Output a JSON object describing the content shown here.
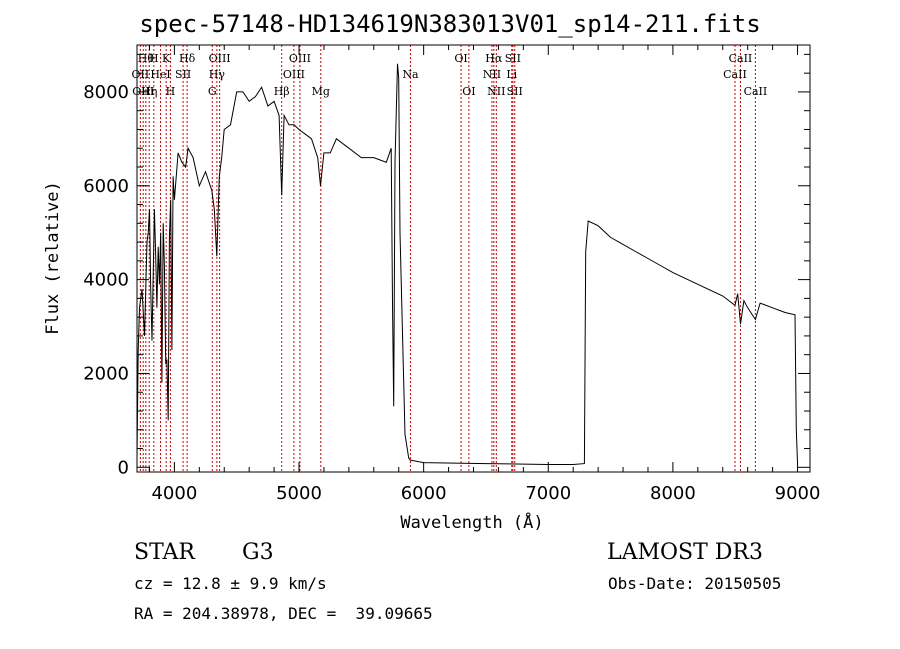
{
  "chart_data": {
    "type": "line",
    "title": "spec-57148-HD134619N383013V01_sp14-211.fits",
    "xlabel": "Wavelength (Å)",
    "ylabel": "Flux (relative)",
    "xlim": [
      3700,
      9100
    ],
    "ylim": [
      -100,
      9000
    ],
    "x_ticks": [
      4000,
      5000,
      6000,
      7000,
      8000,
      9000
    ],
    "y_ticks": [
      0,
      2000,
      4000,
      6000,
      8000
    ],
    "grid": false,
    "series": [
      {
        "x": [
          3700,
          3710,
          3720,
          3740,
          3760,
          3780,
          3790,
          3800,
          3810,
          3820,
          3840,
          3850,
          3860,
          3870,
          3880,
          3890,
          3900,
          3910,
          3920,
          3930,
          3940,
          3950,
          3960,
          3970,
          3980,
          3990,
          4000,
          4030,
          4060,
          4090,
          4100,
          4110,
          4150,
          4200,
          4250,
          4300,
          4320,
          4340,
          4360,
          4380,
          4400,
          4450,
          4500,
          4550,
          4600,
          4650,
          4700,
          4750,
          4800,
          4840,
          4861,
          4880,
          4920,
          4960,
          5000,
          5050,
          5100,
          5150,
          5172,
          5200,
          5250,
          5300,
          5400,
          5500,
          5600,
          5700,
          5740,
          5750,
          5760,
          5770,
          5790,
          5800,
          5810,
          5850,
          5880,
          5893,
          5900,
          6000,
          6500,
          7000,
          7200,
          7290,
          7300,
          7320,
          7400,
          7500,
          7600,
          7700,
          7800,
          7900,
          8000,
          8200,
          8400,
          8498,
          8520,
          8542,
          8570,
          8600,
          8662,
          8700,
          8800,
          8900,
          8980,
          8990,
          9000
        ],
        "y": [
          200,
          2500,
          3400,
          3800,
          2800,
          4800,
          5000,
          5500,
          3800,
          2700,
          5500,
          4500,
          3400,
          4700,
          3900,
          5000,
          1800,
          5200,
          4300,
          2200,
          2300,
          1000,
          4900,
          5700,
          2500,
          6200,
          5700,
          6700,
          6500,
          6400,
          6600,
          6800,
          6600,
          6000,
          6300,
          5900,
          5500,
          4500,
          6200,
          6600,
          7200,
          7300,
          8000,
          8000,
          7800,
          7900,
          8100,
          7700,
          7800,
          7500,
          5800,
          7500,
          7300,
          7300,
          7200,
          7100,
          7000,
          6600,
          6000,
          6700,
          6700,
          7000,
          6800,
          6600,
          6600,
          6500,
          6800,
          3500,
          1300,
          6500,
          8600,
          8300,
          5000,
          700,
          200,
          150,
          150,
          100,
          80,
          60,
          60,
          80,
          4600,
          5250,
          5150,
          4900,
          4750,
          4600,
          4450,
          4300,
          4150,
          3900,
          3650,
          3450,
          3700,
          3050,
          3550,
          3400,
          3150,
          3500,
          3400,
          3300,
          3250,
          800,
          100
        ]
      }
    ],
    "lines": [
      {
        "x": 3727,
        "label": "OII",
        "row": 2
      },
      {
        "x": 3750,
        "label": "OIII",
        "row": 3
      },
      {
        "x": 3771,
        "label": "Hθ",
        "row": 1
      },
      {
        "x": 3798,
        "label": "Hη",
        "row": 3
      },
      {
        "x": 3835,
        "label": "H",
        "row": 1
      },
      {
        "x": 3889,
        "label": "HeI",
        "row": 2
      },
      {
        "x": 3934,
        "label": "K",
        "row": 1
      },
      {
        "x": 3968,
        "label": "H",
        "row": 3
      },
      {
        "x": 4070,
        "label": "SII",
        "row": 2
      },
      {
        "x": 4102,
        "label": "Hδ",
        "row": 1
      },
      {
        "x": 4304,
        "label": "G",
        "row": 3
      },
      {
        "x": 4341,
        "label": "Hγ",
        "row": 2
      },
      {
        "x": 4363,
        "label": "OIII",
        "row": 1
      },
      {
        "x": 4861,
        "label": "Hβ",
        "row": 3
      },
      {
        "x": 4959,
        "label": "OIII",
        "row": 2
      },
      {
        "x": 5007,
        "label": "OIII",
        "row": 1
      },
      {
        "x": 5175,
        "label": "Mg",
        "row": 3
      },
      {
        "x": 5894,
        "label": "Na",
        "row": 2
      },
      {
        "x": 6300,
        "label": "OI",
        "row": 1
      },
      {
        "x": 6363,
        "label": "OI",
        "row": 3
      },
      {
        "x": 6548,
        "label": "NII",
        "row": 2
      },
      {
        "x": 6563,
        "label": "Hα",
        "row": 1
      },
      {
        "x": 6583,
        "label": "NII",
        "row": 3
      },
      {
        "x": 6707,
        "label": "Li",
        "row": 2
      },
      {
        "x": 6716,
        "label": "SII",
        "row": 1
      },
      {
        "x": 6731,
        "label": "SII",
        "row": 3
      },
      {
        "x": 8498,
        "label": "CaII",
        "row": 2
      },
      {
        "x": 8542,
        "label": "CaII",
        "row": 1
      },
      {
        "x": 8662,
        "label": "CaII",
        "row": 3
      }
    ]
  },
  "info": {
    "object_class": "STAR",
    "subclass": "G3",
    "survey": "LAMOST DR3",
    "redshift": "cz = 12.8 ± 9.9 km/s",
    "obs_date": "Obs-Date: 20150505",
    "coords": "RA = 204.38978, DEC =  39.09665"
  }
}
